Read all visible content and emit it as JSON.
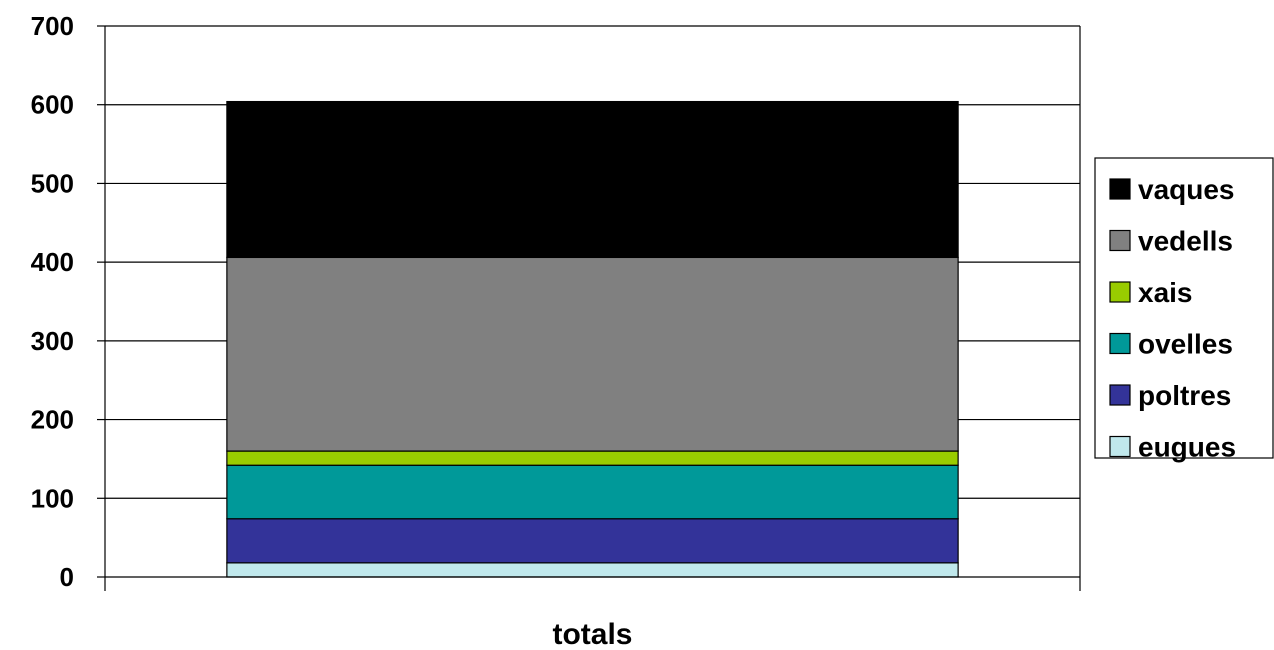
{
  "chart_data": {
    "type": "bar",
    "stacked": true,
    "categories": [
      "totals"
    ],
    "series": [
      {
        "name": "eugues",
        "values": [
          18
        ],
        "color": "#c0e8ec"
      },
      {
        "name": "poltres",
        "values": [
          56
        ],
        "color": "#333399"
      },
      {
        "name": "ovelles",
        "values": [
          68
        ],
        "color": "#009999"
      },
      {
        "name": "xais",
        "values": [
          18
        ],
        "color": "#99cc00"
      },
      {
        "name": "vedells",
        "values": [
          246
        ],
        "color": "#808080"
      },
      {
        "name": "vaques",
        "values": [
          198
        ],
        "color": "#000000"
      }
    ],
    "legend_order": [
      "vaques",
      "vedells",
      "xais",
      "ovelles",
      "poltres",
      "eugues"
    ],
    "ylim": [
      0,
      700
    ],
    "yticks": [
      "0",
      "100",
      "200",
      "300",
      "400",
      "500",
      "600",
      "700"
    ],
    "grid": true,
    "legend_position": "right"
  }
}
